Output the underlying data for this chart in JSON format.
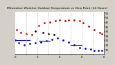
{
  "title": "Milwaukee Weather Outdoor Temperature vs Dew Point (24 Hours)",
  "title_fontsize": 3.2,
  "bg_color": "#d4d0c8",
  "plot_bg_color": "#ffffff",
  "xlim": [
    0,
    24
  ],
  "ylim": [
    10,
    56
  ],
  "yticks": [
    15,
    20,
    25,
    30,
    35,
    40,
    45,
    50,
    55
  ],
  "ytick_labels": [
    "15",
    "20",
    "25",
    "30",
    "35",
    "40",
    "45",
    "50",
    "55"
  ],
  "grid_color": "#999999",
  "temp_color": "#cc0000",
  "dew_color": "#0000cc",
  "black_color": "#000000",
  "temp_x": [
    0.5,
    1.5,
    3.0,
    4.5,
    6.5,
    8.0,
    9.5,
    11.0,
    12.0,
    13.5,
    14.5,
    16.0,
    17.5,
    18.5,
    20.0,
    21.5,
    23.0,
    23.5
  ],
  "temp_y": [
    36,
    33,
    32,
    31,
    41,
    44,
    45,
    46,
    47,
    46,
    47,
    47,
    46,
    44,
    40,
    36,
    33,
    32
  ],
  "dew_x": [
    0.0,
    1.0,
    2.5,
    4.0,
    5.5,
    7.0,
    8.5,
    10.0,
    11.5,
    13.0,
    14.5,
    16.0,
    17.5,
    19.0,
    20.5,
    21.5,
    22.5,
    23.5
  ],
  "dew_y": [
    25,
    22,
    20,
    21,
    22,
    23,
    24,
    26,
    27,
    25,
    23,
    20,
    17,
    16,
    15,
    14,
    14,
    14
  ],
  "black_x": [
    5.5,
    7.5,
    9.0,
    10.5
  ],
  "black_y": [
    35,
    33,
    32,
    31
  ],
  "vgrid_x": [
    3,
    6,
    9,
    12,
    15,
    18,
    21
  ],
  "xtick_positions": [
    0,
    3,
    6,
    9,
    12,
    15,
    18,
    21,
    24
  ],
  "xtick_labels": [
    "6",
    "",
    "6",
    "",
    "6",
    "",
    "6",
    "",
    "6"
  ],
  "marker_size": 2.0,
  "tick_fontsize": 3.0,
  "right_ytick_fontsize": 3.0
}
